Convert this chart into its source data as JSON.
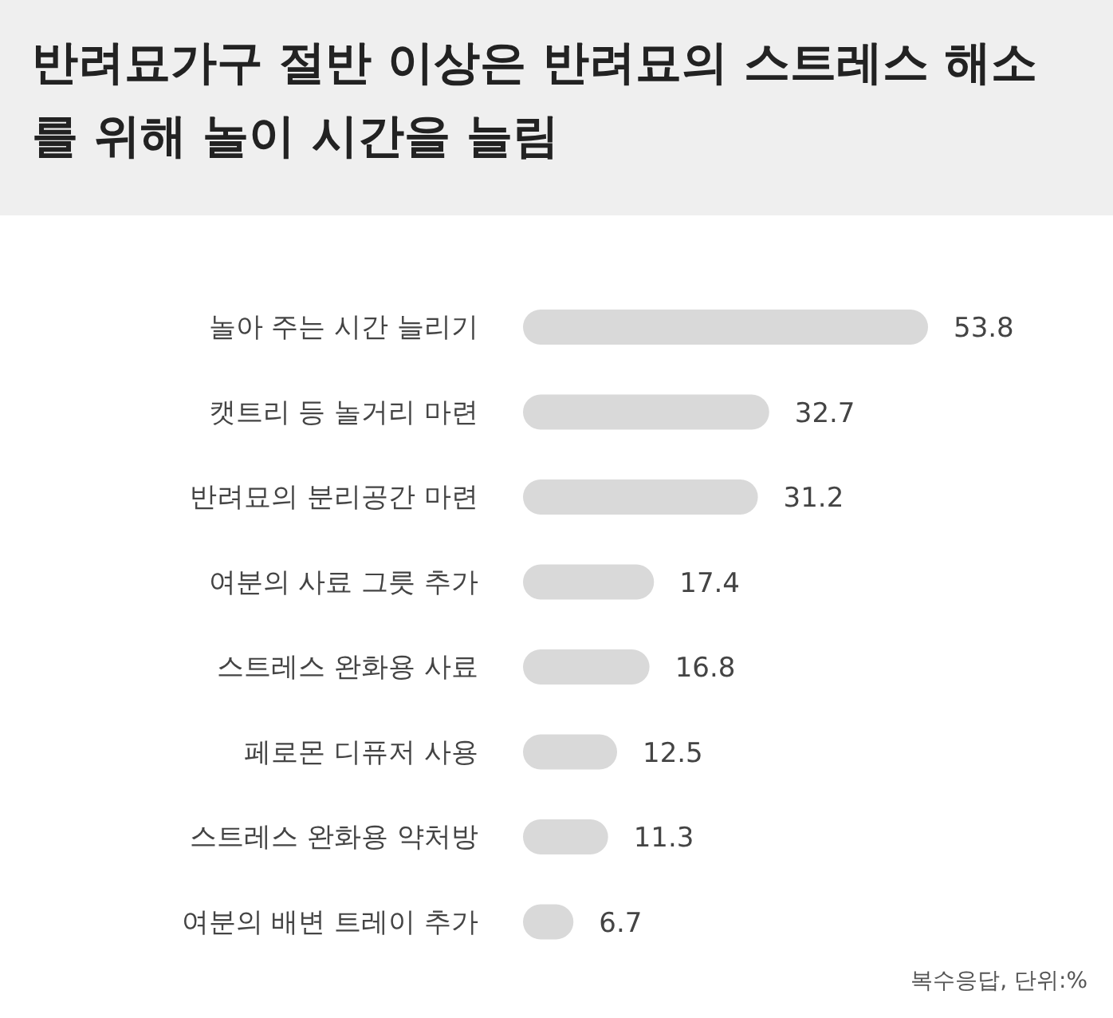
{
  "chart_data": {
    "type": "bar",
    "orientation": "horizontal",
    "title": "반려묘가구 절반 이상은 반려묘의 스트레스 해소를 위해 놀이 시간을 늘림",
    "categories": [
      "놀아 주는 시간 늘리기",
      "캣트리 등 놀거리 마련",
      "반려묘의 분리공간 마련",
      "여분의 사료 그릇 추가",
      "스트레스 완화용 사료",
      "페로몬 디퓨저 사용",
      "스트레스 완화용 약처방",
      "여분의 배변 트레이 추가"
    ],
    "values": [
      53.8,
      32.7,
      31.2,
      17.4,
      16.8,
      12.5,
      11.3,
      6.7
    ],
    "color": "#d9d9d9",
    "data_labels": true,
    "grid": false,
    "legend": false,
    "annotations": [
      "복수응답, 단위:%"
    ]
  }
}
